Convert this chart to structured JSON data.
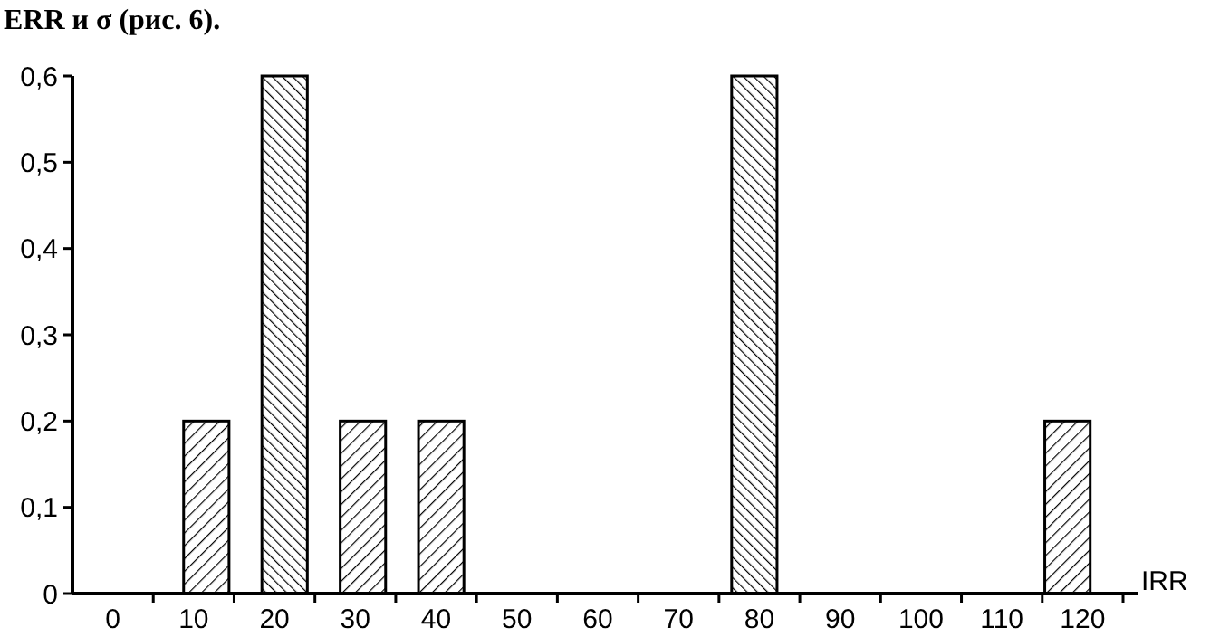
{
  "chart_data": {
    "type": "bar",
    "xlabel": "IRR",
    "annotations": [
      "ERR и σ (рис. 6)."
    ],
    "categories": [
      "0",
      "10",
      "20",
      "30",
      "40",
      "50",
      "60",
      "70",
      "80",
      "90",
      "100",
      "110",
      "120"
    ],
    "values": [
      null,
      0.2,
      0.6,
      0.2,
      0.2,
      null,
      null,
      null,
      0.6,
      null,
      null,
      null,
      0.2
    ],
    "color": "#000000",
    "ylim": [
      0,
      0.6
    ],
    "yticks": [
      {
        "value": 0,
        "label": "0"
      },
      {
        "value": 0.1,
        "label": "0,1"
      },
      {
        "value": 0.2,
        "label": "0,2"
      },
      {
        "value": 0.3,
        "label": "0,3"
      },
      {
        "value": 0.4,
        "label": "0,4"
      },
      {
        "value": 0.5,
        "label": "0,5"
      },
      {
        "value": 0.6,
        "label": "0,6"
      }
    ],
    "grid": false
  }
}
